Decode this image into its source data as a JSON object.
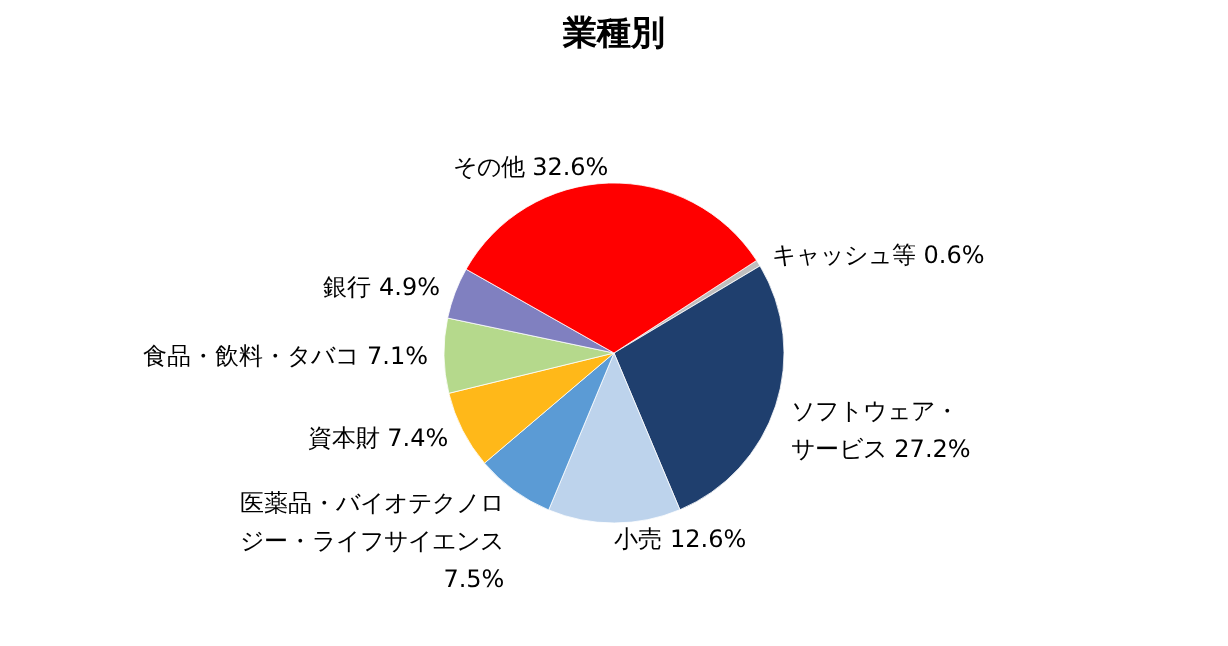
{
  "chart_data": {
    "type": "pie",
    "title": "業種別",
    "categories": [
      "キャッシュ等",
      "ソフトウェア・サービス",
      "小売",
      "医薬品・バイオテクノロジー・ライフサイエンス",
      "資本財",
      "食品・飲料・タバコ",
      "銀行",
      "その他"
    ],
    "values": [
      0.6,
      27.2,
      12.6,
      7.5,
      7.4,
      7.1,
      4.9,
      32.6
    ],
    "colors": [
      "#bfbfbf",
      "#1f3f6e",
      "#bdd3ec",
      "#5b9bd5",
      "#ffb819",
      "#b5d98c",
      "#8080c0",
      "#ff0000"
    ],
    "value_labels": [
      "0.6%",
      "27.2%",
      "12.6%",
      "7.5%",
      "7.4%",
      "7.1%",
      "4.9%",
      "32.6%"
    ],
    "legend": false
  }
}
